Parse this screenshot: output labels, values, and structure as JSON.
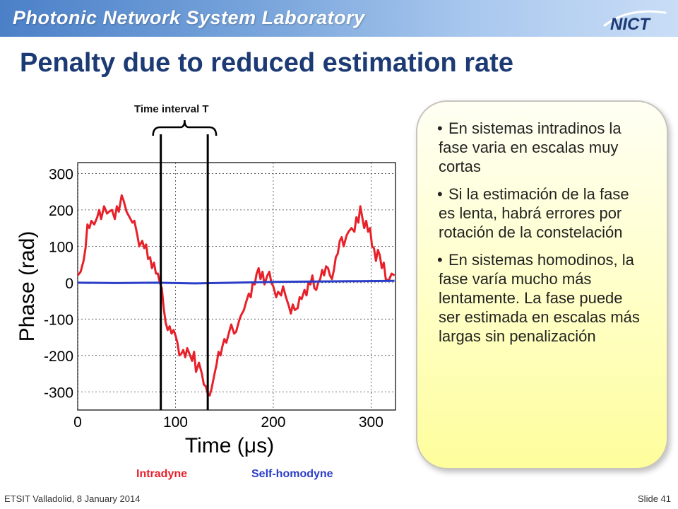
{
  "header": {
    "lab_name": "Photonic Network System Laboratory",
    "logo_text": "NICT",
    "slide_title": "Penalty due to reduced estimation rate"
  },
  "annotation": {
    "time_interval_label": "Time interval  T",
    "interval_start": 85,
    "interval_end": 133
  },
  "notes": {
    "items": [
      "En sistemas intradinos la fase varia en escalas muy cortas",
      "Si la estimación de la fase es lenta, habrá errores por rotación de la constelación",
      "En sistemas homodinos, la fase varía mucho más lentamente. La fase puede ser estimada en escalas más largas sin penalización"
    ]
  },
  "legend": {
    "intradyne": "Intradyne",
    "self_homodyne": "Self-homodyne"
  },
  "footer": {
    "left": "ETSIT Valladolid, 8 January 2014",
    "right": "Slide 41"
  },
  "colors": {
    "intradyne": "#e8202a",
    "self_homodyne": "#2a3dc8",
    "title": "#1c3a73"
  },
  "chart_data": {
    "type": "line",
    "xlabel": "Time (μs)",
    "ylabel": "Phase (rad)",
    "xlim": [
      0,
      325
    ],
    "ylim": [
      -350,
      330
    ],
    "xticks": [
      0,
      100,
      200,
      300
    ],
    "yticks": [
      300,
      200,
      100,
      0,
      -100,
      -200,
      -300
    ],
    "grid": true,
    "series": [
      {
        "name": "Intradyne",
        "color": "#e8202a",
        "points": [
          [
            0,
            20
          ],
          [
            3,
            30
          ],
          [
            6,
            60
          ],
          [
            8,
            95
          ],
          [
            10,
            160
          ],
          [
            12,
            150
          ],
          [
            14,
            170
          ],
          [
            17,
            160
          ],
          [
            20,
            180
          ],
          [
            22,
            200
          ],
          [
            24,
            175
          ],
          [
            27,
            210
          ],
          [
            30,
            190
          ],
          [
            32,
            195
          ],
          [
            35,
            200
          ],
          [
            38,
            175
          ],
          [
            40,
            210
          ],
          [
            42,
            195
          ],
          [
            45,
            240
          ],
          [
            47,
            225
          ],
          [
            50,
            195
          ],
          [
            53,
            180
          ],
          [
            56,
            165
          ],
          [
            58,
            170
          ],
          [
            61,
            130
          ],
          [
            63,
            100
          ],
          [
            66,
            115
          ],
          [
            68,
            95
          ],
          [
            70,
            105
          ],
          [
            72,
            65
          ],
          [
            74,
            70
          ],
          [
            76,
            40
          ],
          [
            78,
            55
          ],
          [
            80,
            25
          ],
          [
            82,
            25
          ],
          [
            84,
            0
          ],
          [
            86,
            -15
          ],
          [
            88,
            -70
          ],
          [
            90,
            -110
          ],
          [
            92,
            -130
          ],
          [
            94,
            -120
          ],
          [
            96,
            -140
          ],
          [
            98,
            -130
          ],
          [
            100,
            -145
          ],
          [
            102,
            -165
          ],
          [
            104,
            -200
          ],
          [
            106,
            -195
          ],
          [
            108,
            -185
          ],
          [
            110,
            -205
          ],
          [
            112,
            -180
          ],
          [
            115,
            -200
          ],
          [
            117,
            -215
          ],
          [
            119,
            -190
          ],
          [
            121,
            -245
          ],
          [
            124,
            -220
          ],
          [
            127,
            -250
          ],
          [
            129,
            -280
          ],
          [
            131,
            -285
          ],
          [
            133,
            -305
          ],
          [
            135,
            -310
          ],
          [
            137,
            -290
          ],
          [
            140,
            -250
          ],
          [
            142,
            -225
          ],
          [
            144,
            -190
          ],
          [
            146,
            -200
          ],
          [
            148,
            -175
          ],
          [
            150,
            -155
          ],
          [
            152,
            -165
          ],
          [
            155,
            -135
          ],
          [
            157,
            -115
          ],
          [
            160,
            -140
          ],
          [
            162,
            -135
          ],
          [
            165,
            -105
          ],
          [
            167,
            -90
          ],
          [
            170,
            -75
          ],
          [
            172,
            -55
          ],
          [
            175,
            -30
          ],
          [
            177,
            -40
          ],
          [
            179,
            0
          ],
          [
            181,
            -5
          ],
          [
            183,
            25
          ],
          [
            185,
            40
          ],
          [
            187,
            10
          ],
          [
            189,
            30
          ],
          [
            191,
            -5
          ],
          [
            194,
            20
          ],
          [
            196,
            30
          ],
          [
            198,
            0
          ],
          [
            200,
            -10
          ],
          [
            203,
            -40
          ],
          [
            205,
            -25
          ],
          [
            208,
            -35
          ],
          [
            210,
            -10
          ],
          [
            213,
            -40
          ],
          [
            216,
            -65
          ],
          [
            218,
            -85
          ],
          [
            220,
            -60
          ],
          [
            222,
            -75
          ],
          [
            225,
            -70
          ],
          [
            227,
            -40
          ],
          [
            229,
            -45
          ],
          [
            232,
            -20
          ],
          [
            234,
            -35
          ],
          [
            236,
            0
          ],
          [
            238,
            -5
          ],
          [
            240,
            20
          ],
          [
            242,
            -15
          ],
          [
            244,
            -20
          ],
          [
            246,
            0
          ],
          [
            248,
            10
          ],
          [
            250,
            35
          ],
          [
            252,
            20
          ],
          [
            254,
            45
          ],
          [
            256,
            40
          ],
          [
            258,
            20
          ],
          [
            260,
            10
          ],
          [
            262,
            35
          ],
          [
            264,
            70
          ],
          [
            266,
            80
          ],
          [
            268,
            115
          ],
          [
            270,
            125
          ],
          [
            272,
            100
          ],
          [
            275,
            130
          ],
          [
            277,
            140
          ],
          [
            280,
            150
          ],
          [
            283,
            140
          ],
          [
            285,
            180
          ],
          [
            287,
            165
          ],
          [
            289,
            210
          ],
          [
            291,
            180
          ],
          [
            293,
            150
          ],
          [
            295,
            170
          ],
          [
            297,
            140
          ],
          [
            299,
            150
          ],
          [
            301,
            100
          ],
          [
            303,
            95
          ],
          [
            305,
            60
          ],
          [
            307,
            90
          ],
          [
            309,
            75
          ],
          [
            311,
            40
          ],
          [
            313,
            55
          ],
          [
            315,
            10
          ],
          [
            318,
            5
          ],
          [
            321,
            25
          ],
          [
            324,
            20
          ]
        ]
      },
      {
        "name": "Self-homodyne",
        "color": "#2a3dc8",
        "points": [
          [
            0,
            0
          ],
          [
            40,
            -1
          ],
          [
            80,
            0
          ],
          [
            120,
            -2
          ],
          [
            160,
            0
          ],
          [
            200,
            2
          ],
          [
            240,
            3
          ],
          [
            280,
            4
          ],
          [
            324,
            5
          ]
        ]
      }
    ]
  }
}
